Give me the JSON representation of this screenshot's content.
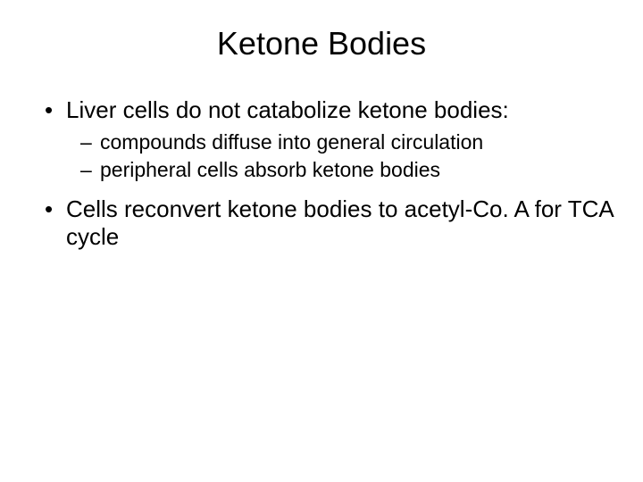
{
  "slide": {
    "title": "Ketone Bodies",
    "bullets": [
      {
        "level": 1,
        "text": "Liver cells do not catabolize ketone bodies:"
      },
      {
        "level": 2,
        "text": "compounds diffuse into general circulation"
      },
      {
        "level": 2,
        "text": "peripheral cells absorb ketone bodies"
      },
      {
        "level": 1,
        "text": "Cells reconvert ketone bodies to acetyl-Co. A for TCA cycle"
      }
    ],
    "style": {
      "background_color": "#ffffff",
      "text_color": "#000000",
      "title_fontsize": 36,
      "l1_fontsize": 26,
      "l2_fontsize": 23,
      "font_family": "Arial"
    }
  }
}
